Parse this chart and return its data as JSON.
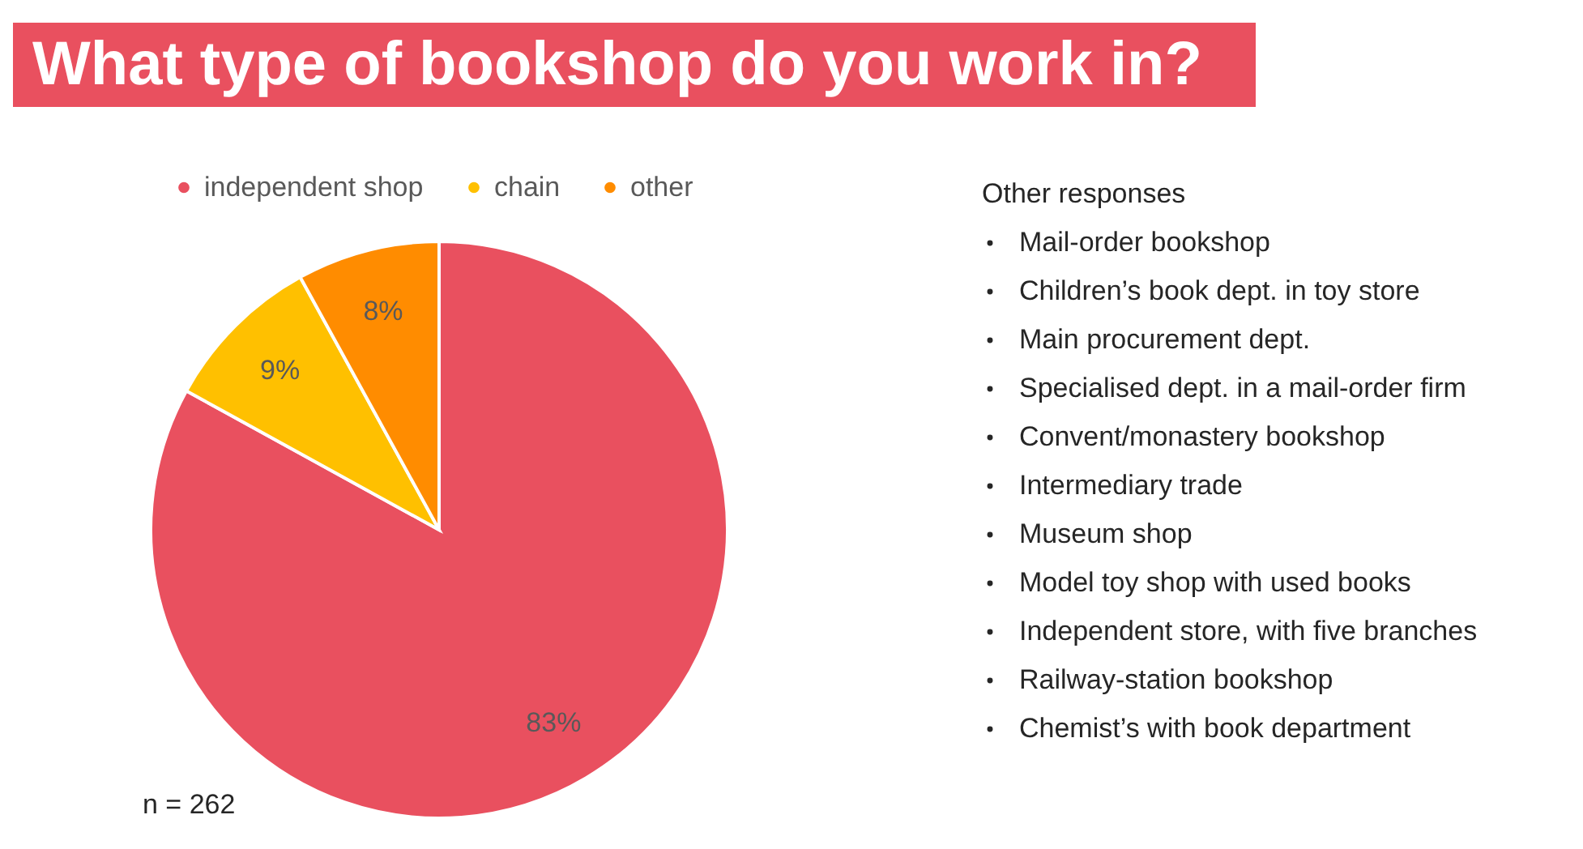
{
  "chart_data": {
    "type": "pie",
    "title": "What type of bookshop do you work in?",
    "categories": [
      "independent shop",
      "chain",
      "other"
    ],
    "values": [
      83,
      9,
      8
    ],
    "colors": [
      "#e9505f",
      "#ffc000",
      "#ff8c00"
    ],
    "value_labels": [
      "83%",
      "9%",
      "8%"
    ],
    "legend": "top",
    "annotations": [
      "Other responses",
      "Mail-order bookshop",
      "Children’s book dept. in toy store",
      "Main procurement dept.",
      "Specialised dept. in a mail-order firm",
      "Convent/monastery bookshop",
      "Intermediary trade",
      "Museum shop",
      "Model toy shop with used books",
      "Independent store, with five branches",
      "Railway-station bookshop",
      "Chemist’s with book department",
      "n = 262"
    ]
  }
}
